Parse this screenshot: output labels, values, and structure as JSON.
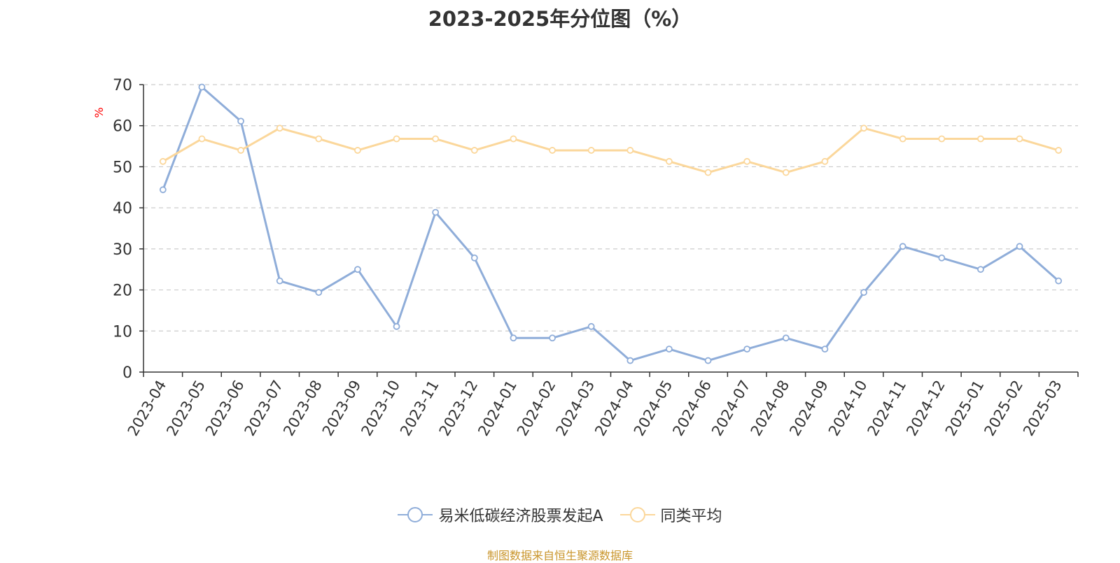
{
  "chart_data": {
    "type": "line",
    "title": "2023-2025年分位图（%）",
    "ylabel": "%",
    "xlabel": "",
    "ylim": [
      0,
      70
    ],
    "yticks": [
      0,
      10,
      20,
      30,
      40,
      50,
      60,
      70
    ],
    "categories": [
      "2023-04",
      "2023-05",
      "2023-06",
      "2023-07",
      "2023-08",
      "2023-09",
      "2023-10",
      "2023-11",
      "2023-12",
      "2024-01",
      "2024-02",
      "2024-03",
      "2024-04",
      "2024-05",
      "2024-06",
      "2024-07",
      "2024-08",
      "2024-09",
      "2024-10",
      "2024-11",
      "2024-12",
      "2025-01",
      "2025-02",
      "2025-03"
    ],
    "series": [
      {
        "name": "易米低碳经济股票发起A",
        "color": "#8fadd9",
        "values": [
          44.4,
          69.4,
          61.1,
          22.2,
          19.4,
          25.0,
          11.1,
          38.9,
          27.8,
          8.3,
          8.3,
          11.1,
          2.8,
          5.6,
          2.8,
          5.6,
          8.3,
          5.6,
          19.4,
          30.6,
          27.8,
          25.0,
          30.6,
          22.2
        ]
      },
      {
        "name": "同类平均",
        "color": "#fbd79b",
        "values": [
          51.3,
          56.8,
          54.0,
          59.4,
          56.8,
          54.0,
          56.8,
          56.8,
          54.0,
          56.8,
          54.0,
          54.0,
          54.0,
          51.3,
          48.6,
          51.3,
          48.6,
          51.3,
          59.4,
          56.8,
          56.8,
          56.8,
          56.8,
          54.0
        ]
      }
    ],
    "legend_position": "bottom",
    "grid": true
  },
  "source_note": "制图数据来自恒生聚源数据库"
}
